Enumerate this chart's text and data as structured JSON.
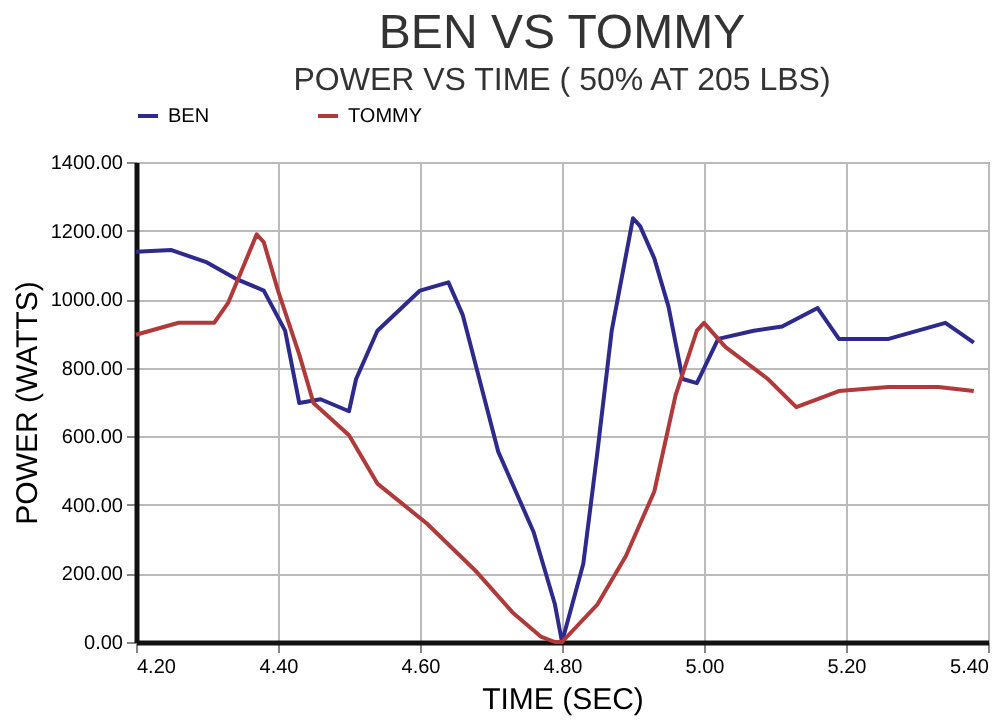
{
  "chart_data": {
    "type": "line",
    "title": "BEN VS TOMMY",
    "subtitle": "POWER VS TIME ( 50% AT 205 LBS)",
    "xlabel": "TIME (SEC)",
    "ylabel": "POWER (WATTS)",
    "xlim": [
      4.2,
      5.4
    ],
    "xticks": [
      {
        "value": 4.2,
        "label": "4.20"
      },
      {
        "value": 4.4,
        "label": "4.40"
      },
      {
        "value": 4.6,
        "label": "4.60"
      },
      {
        "value": 4.8,
        "label": "4.80"
      },
      {
        "value": 5.0,
        "label": "5.00"
      },
      {
        "value": 5.2,
        "label": "5.20"
      },
      {
        "value": 5.4,
        "label": "5.40"
      }
    ],
    "ylim": [
      0,
      1400
    ],
    "yticks": [
      {
        "value": 0,
        "label": "0.00"
      },
      {
        "value": 200,
        "label": "200.00"
      },
      {
        "value": 400,
        "label": "400.00"
      },
      {
        "value": 600,
        "label": "600.00"
      },
      {
        "value": 800,
        "label": "800.00"
      },
      {
        "value": 1000,
        "label": "1000.00"
      },
      {
        "value": 1200,
        "label": "1200.00"
      },
      {
        "value": 1400,
        "label": "1400.00"
      }
    ],
    "grid": true,
    "legend": "top",
    "line_style": "solid",
    "series": [
      {
        "name": "BEN",
        "color": "#2e2a8c",
        "x": [
          4.2,
          4.25,
          4.3,
          4.34,
          4.38,
          4.41,
          4.43,
          4.46,
          4.5,
          4.51,
          4.54,
          4.6,
          4.64,
          4.66,
          4.71,
          4.76,
          4.79,
          4.8,
          4.83,
          4.85,
          4.87,
          4.9,
          4.91,
          4.93,
          4.95,
          4.97,
          4.99,
          5.02,
          5.07,
          5.11,
          5.16,
          5.19,
          5.26,
          5.34,
          5.38
        ],
        "values": [
          1138,
          1143,
          1107,
          1060,
          1025,
          908,
          697,
          708,
          673,
          767,
          908,
          1025,
          1049,
          955,
          556,
          321,
          110,
          0,
          228,
          556,
          908,
          1236,
          1213,
          1119,
          978,
          767,
          755,
          884,
          908,
          920,
          974,
          884,
          884,
          931,
          873
        ]
      },
      {
        "name": "TOMMY",
        "color": "#b03a3a",
        "x": [
          4.2,
          4.26,
          4.31,
          4.33,
          4.37,
          4.38,
          4.4,
          4.43,
          4.45,
          4.5,
          4.54,
          4.61,
          4.68,
          4.73,
          4.77,
          4.79,
          4.8,
          4.85,
          4.89,
          4.93,
          4.96,
          4.99,
          5.0,
          5.03,
          5.09,
          5.13,
          5.19,
          5.26,
          5.33,
          5.38
        ],
        "values": [
          896,
          931,
          931,
          990,
          1189,
          1166,
          1025,
          838,
          697,
          603,
          462,
          345,
          204,
          87,
          16,
          0,
          0,
          110,
          251,
          439,
          720,
          908,
          931,
          861,
          767,
          685,
          732,
          744,
          744,
          732
        ]
      }
    ]
  }
}
